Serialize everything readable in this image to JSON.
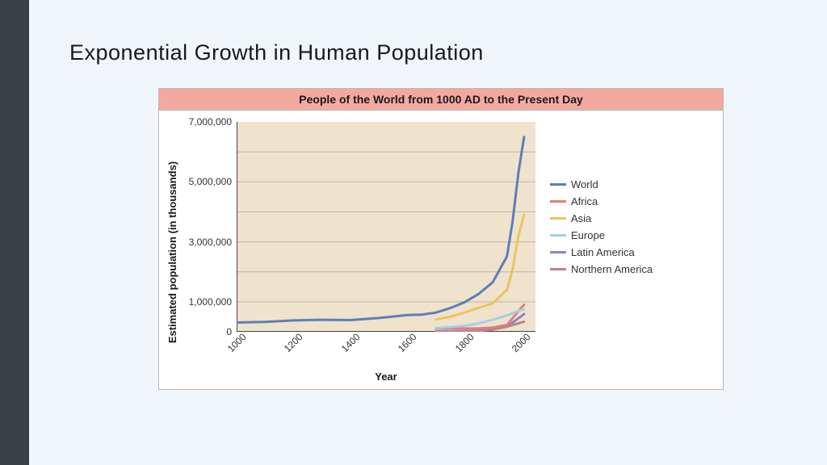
{
  "page": {
    "title": "Exponential Growth in Human Population",
    "background_color": "#f0f6f9",
    "sidebar_color": "#3a4045"
  },
  "chart": {
    "type": "line",
    "title": "People of the World from 1000 AD to the Present Day",
    "title_bar_color": "#f4a9a0",
    "title_fontsize": 14,
    "border_color": "#b8b8b8",
    "plot_background": "#efe3ce",
    "grid_color": "#c2b59b",
    "axis_color": "#444444",
    "xlabel": "Year",
    "ylabel": "Estimated population (in thousands)",
    "label_fontsize": 13,
    "tick_fontsize": 12,
    "xlim": [
      1000,
      2050
    ],
    "xtick_step": 200,
    "xticks": [
      "1000",
      "1200",
      "1400",
      "1600",
      "1800",
      "2000"
    ],
    "ylim": [
      0,
      7000000
    ],
    "ytick_step": 2000000,
    "yticks": [
      "0",
      "1,000,000",
      "3,000,000",
      "5,000,000",
      "7,000,000"
    ],
    "ytick_values": [
      0,
      1000000,
      3000000,
      5000000,
      7000000
    ],
    "line_width": 3,
    "series": [
      {
        "name": "World",
        "color": "#5d7fb6",
        "x": [
          1000,
          1100,
          1200,
          1300,
          1400,
          1500,
          1600,
          1650,
          1700,
          1750,
          1800,
          1850,
          1900,
          1950,
          1970,
          1990,
          2010
        ],
        "y": [
          310000,
          330000,
          380000,
          400000,
          390000,
          460000,
          560000,
          570000,
          640000,
          790000,
          980000,
          1260000,
          1650000,
          2520000,
          3700000,
          5300000,
          6500000
        ]
      },
      {
        "name": "Africa",
        "color": "#e57c77",
        "x": [
          1700,
          1750,
          1800,
          1850,
          1900,
          1950,
          2000,
          2010
        ],
        "y": [
          100000,
          110000,
          110000,
          110000,
          140000,
          230000,
          800000,
          900000
        ]
      },
      {
        "name": "Asia",
        "color": "#e9c55f",
        "x": [
          1700,
          1750,
          1800,
          1850,
          1900,
          1950,
          1970,
          1990,
          2010
        ],
        "y": [
          410000,
          500000,
          640000,
          800000,
          950000,
          1400000,
          2100000,
          3200000,
          3900000
        ]
      },
      {
        "name": "Europe",
        "color": "#a5cfe2",
        "x": [
          1700,
          1750,
          1800,
          1850,
          1900,
          1950,
          2000,
          2010
        ],
        "y": [
          125000,
          160000,
          200000,
          280000,
          400000,
          550000,
          730000,
          740000
        ]
      },
      {
        "name": "Latin America",
        "color": "#9b7fb8",
        "x": [
          1700,
          1750,
          1800,
          1850,
          1900,
          1950,
          2000,
          2010
        ],
        "y": [
          12000,
          16000,
          24000,
          38000,
          74000,
          170000,
          520000,
          590000
        ]
      },
      {
        "name": "Northern America",
        "color": "#b98689",
        "x": [
          1700,
          1750,
          1800,
          1850,
          1900,
          1950,
          2000,
          2010
        ],
        "y": [
          2000,
          2000,
          7000,
          26000,
          82000,
          170000,
          310000,
          340000
        ]
      }
    ]
  }
}
